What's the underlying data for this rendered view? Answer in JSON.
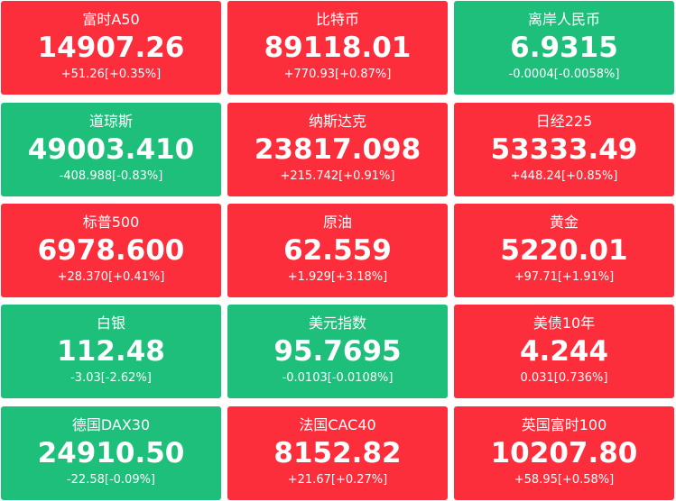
{
  "tiles": [
    {
      "name": "富时A50",
      "price": "14907.26",
      "change": "+51.26[+0.35%]",
      "color": "#fd2e3c"
    },
    {
      "name": "比特币",
      "price": "89118.01",
      "change": "+770.93[+0.87%]",
      "color": "#fd2e3c"
    },
    {
      "name": "离岸人民币",
      "price": "6.9315",
      "change": "-0.0004[-0.0058%]",
      "color": "#1dbf7b"
    },
    {
      "name": "道琼斯",
      "price": "49003.410",
      "change": "-408.988[-0.83%]",
      "color": "#1dbf7b"
    },
    {
      "name": "纳斯达克",
      "price": "23817.098",
      "change": "+215.742[+0.91%]",
      "color": "#fd2e3c"
    },
    {
      "name": "日经225",
      "price": "53333.49",
      "change": "+448.24[+0.85%]",
      "color": "#fd2e3c"
    },
    {
      "name": "标普500",
      "price": "6978.600",
      "change": "+28.370[+0.41%]",
      "color": "#fd2e3c"
    },
    {
      "name": "原油",
      "price": "62.559",
      "change": "+1.929[+3.18%]",
      "color": "#fd2e3c"
    },
    {
      "name": "黄金",
      "price": "5220.01",
      "change": "+97.71[+1.91%]",
      "color": "#fd2e3c"
    },
    {
      "name": "白银",
      "price": "112.48",
      "change": "-3.03[-2.62%]",
      "color": "#1dbf7b"
    },
    {
      "name": "美元指数",
      "price": "95.7695",
      "change": "-0.0103[-0.0108%]",
      "color": "#1dbf7b"
    },
    {
      "name": "美债10年",
      "price": "4.244",
      "change": "0.031[0.736%]",
      "color": "#fd2e3c"
    },
    {
      "name": "德国DAX30",
      "price": "24910.50",
      "change": "-22.58[-0.09%]",
      "color": "#1dbf7b"
    },
    {
      "name": "法国CAC40",
      "price": "8152.82",
      "change": "+21.67[+0.27%]",
      "color": "#fd2e3c"
    },
    {
      "name": "英国富时100",
      "price": "10207.80",
      "change": "+58.95[+0.58%]",
      "color": "#fd2e3c"
    }
  ]
}
